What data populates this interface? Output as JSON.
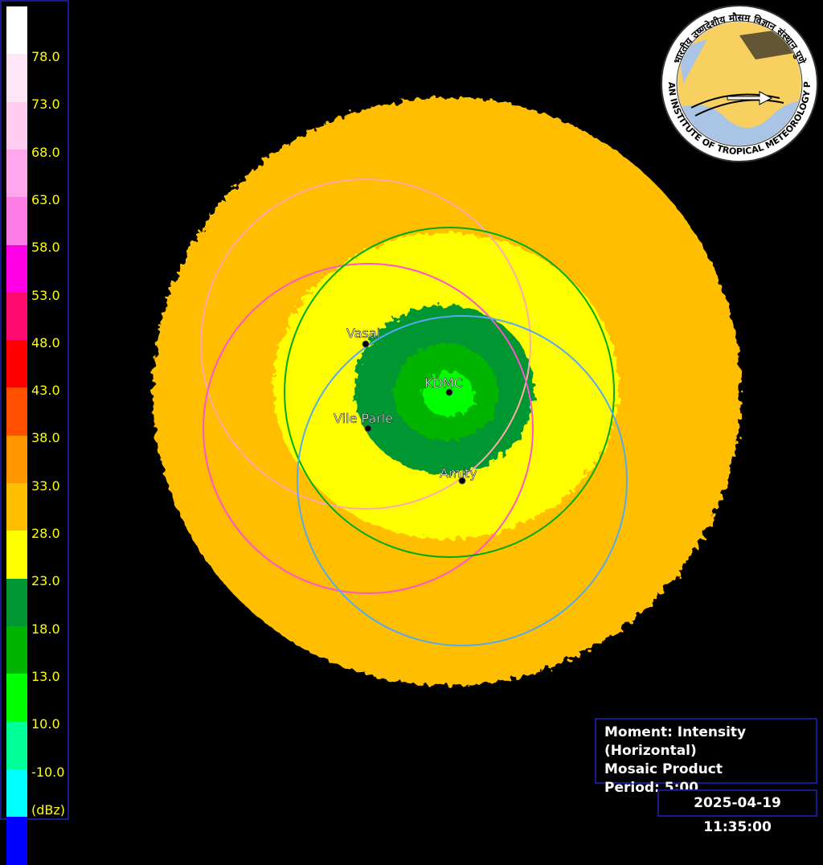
{
  "legend": {
    "unit": "(dBz)",
    "ticks": [
      "78.0",
      "73.0",
      "68.0",
      "63.0",
      "58.0",
      "53.0",
      "48.0",
      "43.0",
      "38.0",
      "33.0",
      "28.0",
      "23.0",
      "18.0",
      "13.0",
      "10.0",
      "-10.0"
    ],
    "colors": [
      "#ffffff",
      "#ffe6f6",
      "#ffcdf0",
      "#ffa6ec",
      "#ff7de6",
      "#ff00e6",
      "#ff0a6e",
      "#ff0000",
      "#ff5000",
      "#ff9600",
      "#ffbe00",
      "#ffff00",
      "#009632",
      "#00b400",
      "#00ff00",
      "#00ff96",
      "#00ffff",
      "#0000ff"
    ]
  },
  "sites": [
    {
      "name": "Vasai",
      "ring_color": "#ffaaaa"
    },
    {
      "name": "Vile Parle",
      "ring_color": "#ff55cc"
    },
    {
      "name": "KDMC",
      "ring_color": "#00aa00"
    },
    {
      "name": "Amity",
      "ring_color": "#55aaee"
    }
  ],
  "info": {
    "moment": "Moment: Intensity (Horizontal)",
    "product": "Mosaic Product",
    "period": "Period: 5:00"
  },
  "timestamp": "2025-04-19 11:35:00",
  "logo": {
    "text_en": "INDIAN INSTITUTE OF TROPICAL METEOROLOGY PUNE",
    "text_hi": "भारतीय उष्णदेशीय मौसम विज्ञान संस्थान पुणे"
  }
}
